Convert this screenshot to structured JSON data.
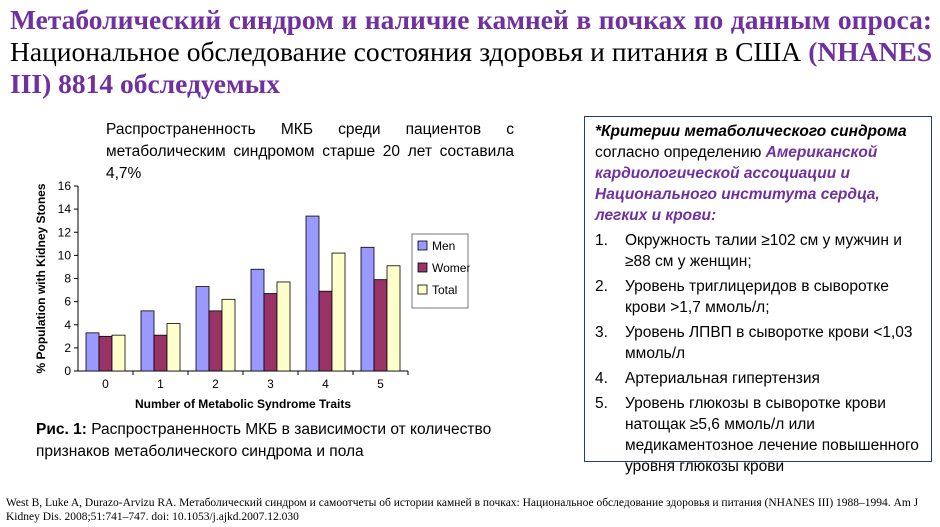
{
  "title": {
    "part1": "Метаболический синдром и наличие камней в почках по данным опроса:",
    "part2": " Национальное обследование состояния здоровья и питания в США ",
    "part3": "(NHANES III) 8814 обследуемых"
  },
  "intro": "Распространенность МКБ среди пациентов с метаболическим синдромом старше 20 лет составила 4,7%",
  "caption": {
    "label": "Рис. 1:",
    "text": " Распространенность МКБ в зависимости от количество признаков метаболического синдрома и пола"
  },
  "criteria": {
    "heading": "*Критерии метаболического синдрома",
    "sub": " согласно определению ",
    "org": "Американской кардиологической ассоциации и Национального института сердца, легких и крови:",
    "items": [
      {
        "num": "1.",
        "text": "Окружность талии ≥102 см у мужчин и ≥88 см у женщин;"
      },
      {
        "num": "2.",
        "text": "Уровень триглицеридов в сыворотке крови >1,7 ммоль/л;"
      },
      {
        "num": "3.",
        "text": "Уровень ЛПВП в сыворотке крови <1,03 ммоль/л"
      },
      {
        "num": "4.",
        "text": "Артериальная гипертензия"
      },
      {
        "num": "5.",
        "text": "Уровень глюкозы в сыворотке крови натощак ≥5,6 ммоль/л или медикаментозное лечение повышенного уровня глюкозы  крови"
      }
    ]
  },
  "reference": "West B, Luke A, Durazo-Arvizu RA. Метаболический синдром и самоотчеты об истории камней в почках: Национальное обследование здоровья и питания (NHANES III) 1988–1994. Am J Kidney Dis. 2008;51:741–747. doi: 10.1053/j.ajkd.2007.12.030",
  "chart_data": {
    "type": "bar",
    "xlabel": "Number of Metabolic Syndrome Traits",
    "ylabel": "% Population with Kidney Stones",
    "categories": [
      "0",
      "1",
      "2",
      "3",
      "4",
      "5"
    ],
    "ylim": [
      0,
      16
    ],
    "yticks": [
      0,
      2,
      4,
      6,
      8,
      10,
      12,
      14,
      16
    ],
    "grid": false,
    "legend": "right",
    "series": [
      {
        "name": "Men",
        "color": "#9999ff",
        "values": [
          3.3,
          5.2,
          7.3,
          8.8,
          13.4,
          10.7
        ]
      },
      {
        "name": "Women",
        "color": "#993366",
        "values": [
          3.0,
          3.1,
          5.2,
          6.7,
          6.9,
          7.9
        ]
      },
      {
        "name": "Total",
        "color": "#ffffcc",
        "values": [
          3.1,
          4.1,
          6.2,
          7.7,
          10.2,
          9.1
        ]
      }
    ]
  }
}
